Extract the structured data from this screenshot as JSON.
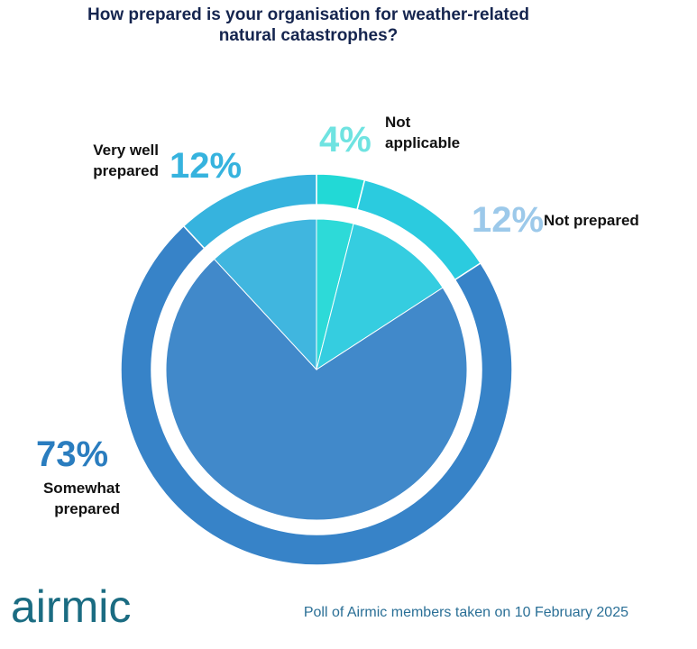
{
  "chart_data": {
    "type": "pie",
    "title": "How prepared is your organisation for weather-related\nnatural catastrophes?",
    "categories": [
      "Not\napplicable",
      "Not prepared",
      "Somewhat\nprepared",
      "Very well\nprepared"
    ],
    "values": [
      4,
      12,
      73,
      12
    ],
    "value_labels": [
      "4%",
      "12%",
      "73%",
      "12%"
    ],
    "colors": [
      "#22d9d6",
      "#2bcbdf",
      "#3783c8",
      "#36b3de"
    ],
    "label_colors": [
      "#6fe3e1",
      "#9cc9ea",
      "#2a7dbf",
      "#36b3de"
    ]
  },
  "logo": "airmic",
  "footer": "Poll of Airmic members taken on 10 February 2025"
}
